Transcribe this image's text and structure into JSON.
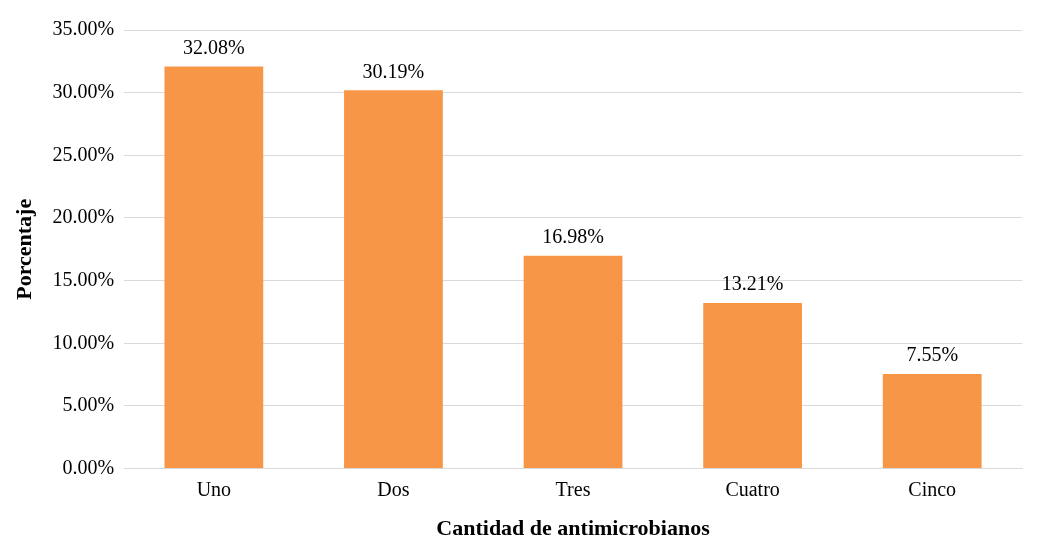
{
  "chart_data": {
    "type": "bar",
    "xlabel": "Cantidad de antimicrobianos",
    "ylabel": "Porcentaje",
    "categories": [
      "Uno",
      "Dos",
      "Tres",
      "Cuatro",
      "Cinco"
    ],
    "values": [
      32.08,
      30.19,
      16.98,
      13.21,
      7.55
    ],
    "value_labels": [
      "32.08%",
      "30.19%",
      "16.98%",
      "13.21%",
      "7.55%"
    ],
    "color": "#f79646",
    "ylim": [
      0,
      35
    ],
    "yticks": [
      {
        "value": 0,
        "label": "0.00%"
      },
      {
        "value": 5,
        "label": "5.00%"
      },
      {
        "value": 10,
        "label": "10.00%"
      },
      {
        "value": 15,
        "label": "15.00%"
      },
      {
        "value": 20,
        "label": "20.00%"
      },
      {
        "value": 25,
        "label": "25.00%"
      },
      {
        "value": 30,
        "label": "30.00%"
      },
      {
        "value": 35,
        "label": "35.00%"
      }
    ],
    "grid": "y",
    "legend": false
  }
}
